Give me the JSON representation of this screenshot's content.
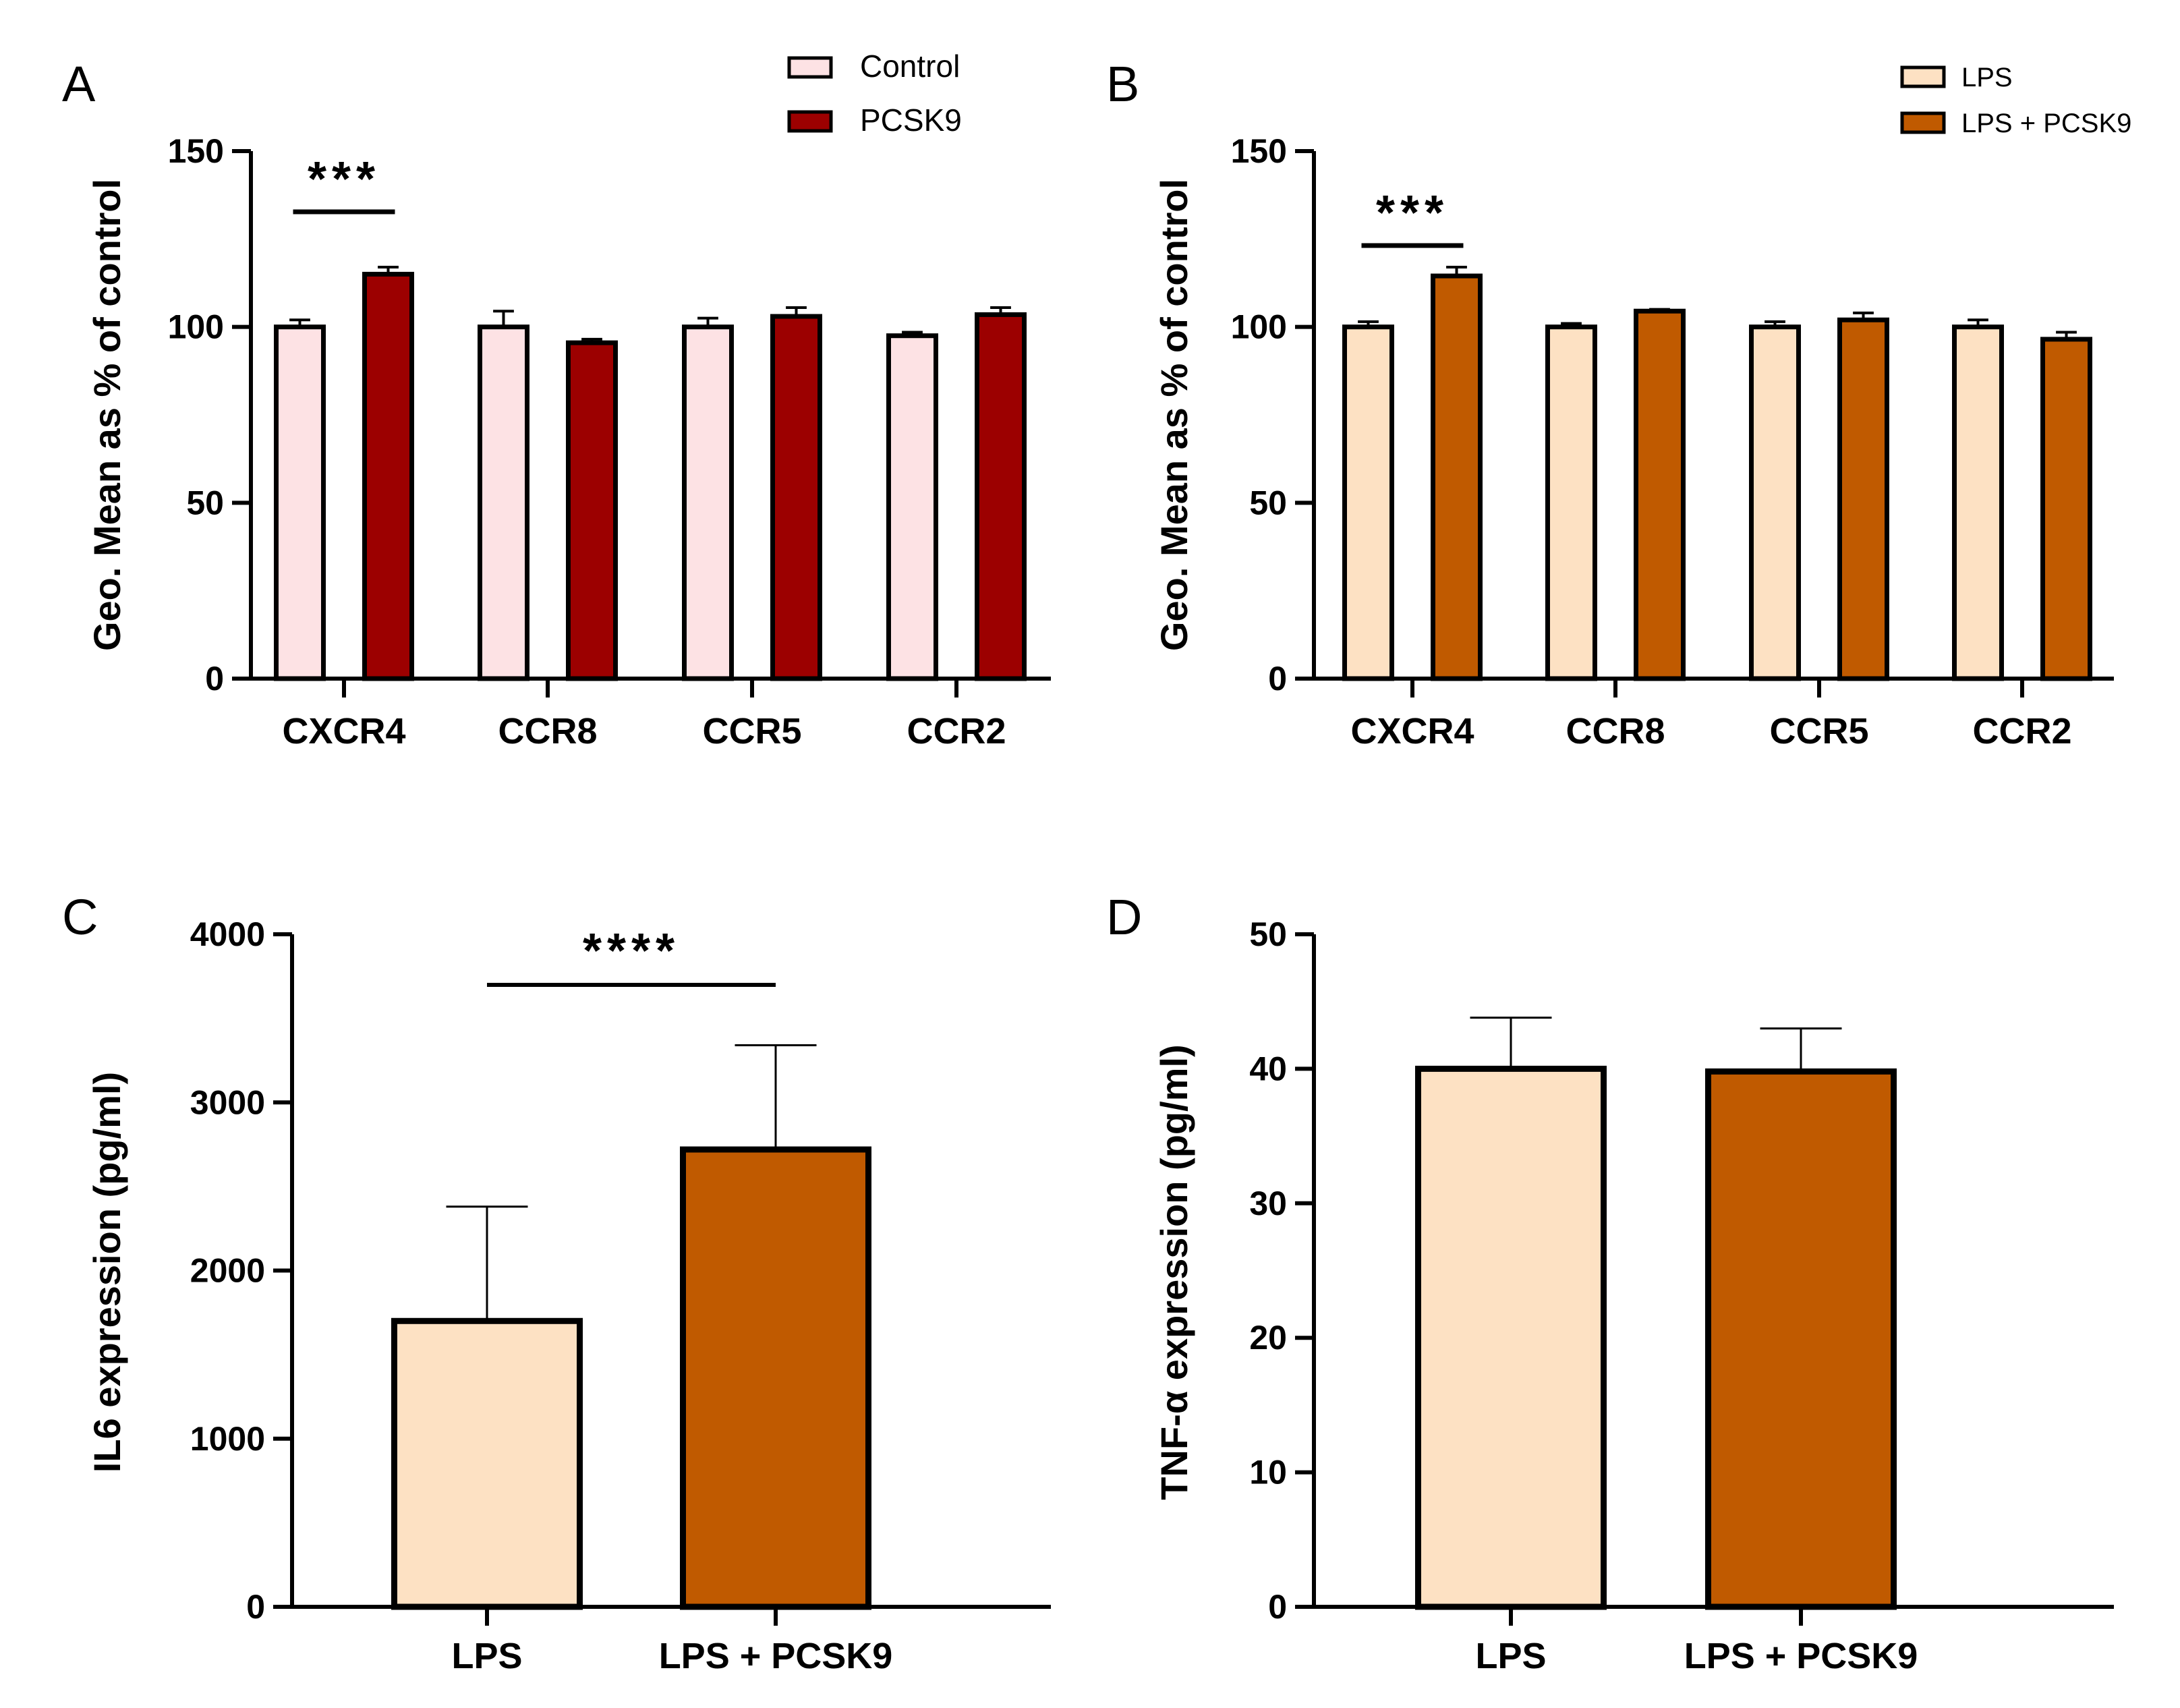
{
  "chart_data": [
    {
      "panel": "A",
      "type": "bar",
      "title": "",
      "xlabel": "",
      "ylabel": "Geo. Mean as % of control",
      "ylim": [
        0,
        150
      ],
      "yticks": [
        "0",
        "50",
        "100",
        "150"
      ],
      "categories": [
        "CXCR4",
        "CCR8",
        "CCR5",
        "CCR2"
      ],
      "series": [
        {
          "name": "Control",
          "color": "#fde2e4",
          "values": [
            100,
            100,
            100,
            97.5
          ],
          "errors": [
            2,
            4.5,
            2.5,
            1
          ]
        },
        {
          "name": "PCSK9",
          "color": "#9c0000",
          "values": [
            115,
            95.5,
            103,
            103.5
          ],
          "errors": [
            2,
            1,
            2.5,
            2
          ]
        }
      ],
      "legend": {
        "position": "top-right",
        "entries": [
          "Control",
          "PCSK9"
        ]
      },
      "significance": [
        {
          "category": "CXCR4",
          "label": "***"
        }
      ]
    },
    {
      "panel": "B",
      "type": "bar",
      "title": "",
      "xlabel": "",
      "ylabel": "Geo. Mean as % of control",
      "ylim": [
        0,
        150
      ],
      "yticks": [
        "0",
        "50",
        "100",
        "150"
      ],
      "categories": [
        "CXCR4",
        "CCR8",
        "CCR5",
        "CCR2"
      ],
      "series": [
        {
          "name": "LPS",
          "color": "#fde1c3",
          "values": [
            100,
            100,
            100,
            100
          ],
          "errors": [
            1.5,
            1,
            1.5,
            2
          ]
        },
        {
          "name": "LPS + PCSK9",
          "color": "#c05a00",
          "values": [
            114.5,
            104.5,
            102,
            96.5
          ],
          "errors": [
            2.5,
            0.5,
            2,
            2
          ]
        }
      ],
      "legend": {
        "position": "top-right",
        "entries": [
          "LPS",
          "LPS + PCSK9"
        ]
      },
      "significance": [
        {
          "category": "CXCR4",
          "label": "***"
        }
      ]
    },
    {
      "panel": "C",
      "type": "bar",
      "title": "",
      "xlabel": "",
      "ylabel": "IL6 expression (pg/ml)",
      "ylim": [
        0,
        4000
      ],
      "yticks": [
        "0",
        "1000",
        "2000",
        "3000",
        "4000"
      ],
      "categories": [
        "LPS",
        "LPS + PCSK9"
      ],
      "colors": [
        "#fde1c3",
        "#c05a00"
      ],
      "values": [
        1700,
        2720
      ],
      "errors": [
        680,
        620
      ],
      "significance": [
        {
          "from": "LPS",
          "to": "LPS + PCSK9",
          "label": "****"
        }
      ]
    },
    {
      "panel": "D",
      "type": "bar",
      "title": "",
      "xlabel": "",
      "ylabel": "TNF-α expression (pg/ml)",
      "ylim": [
        0,
        50
      ],
      "yticks": [
        "0",
        "10",
        "20",
        "30",
        "40",
        "50"
      ],
      "categories": [
        "LPS",
        "LPS + PCSK9"
      ],
      "colors": [
        "#fde1c3",
        "#c05a00"
      ],
      "values": [
        40,
        39.8
      ],
      "errors": [
        3.8,
        3.2
      ],
      "significance": []
    }
  ]
}
